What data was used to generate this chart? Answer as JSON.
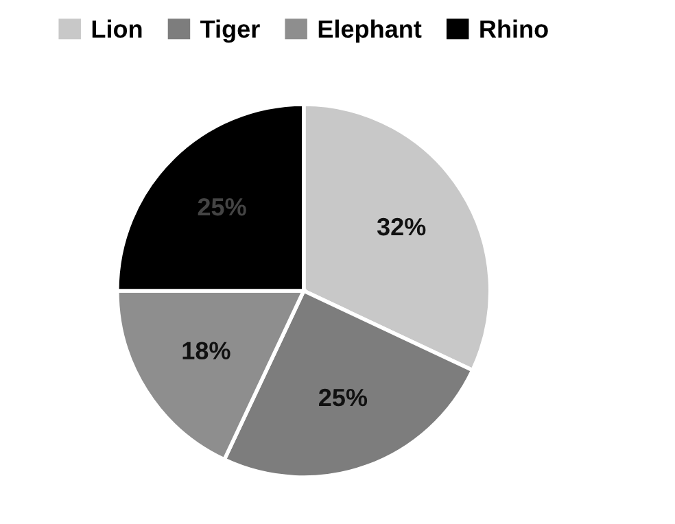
{
  "chart_data": {
    "type": "pie",
    "categories": [
      "Lion",
      "Tiger",
      "Elephant",
      "Rhino"
    ],
    "values": [
      32,
      25,
      18,
      25
    ],
    "colors": [
      "#c8c8c8",
      "#7d7d7d",
      "#8e8e8e",
      "#000000"
    ],
    "value_labels": [
      "32%",
      "25%",
      "18%",
      "25%"
    ],
    "legend": "top"
  }
}
